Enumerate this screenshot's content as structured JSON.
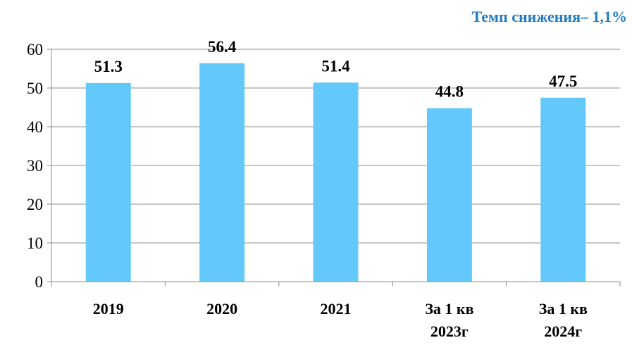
{
  "chart_data": {
    "type": "bar",
    "annotation": "Темп снижения– 1,1%",
    "categories": [
      "2019",
      "2020",
      "2021",
      "За 1 кв 2023г",
      "За 1 кв 2024г"
    ],
    "values": [
      51.3,
      56.4,
      51.4,
      44.8,
      47.5
    ],
    "color": "#63c9fa",
    "ylim": [
      0,
      60
    ],
    "yticks": [
      0,
      10,
      20,
      30,
      40,
      50,
      60
    ],
    "grid": true
  }
}
